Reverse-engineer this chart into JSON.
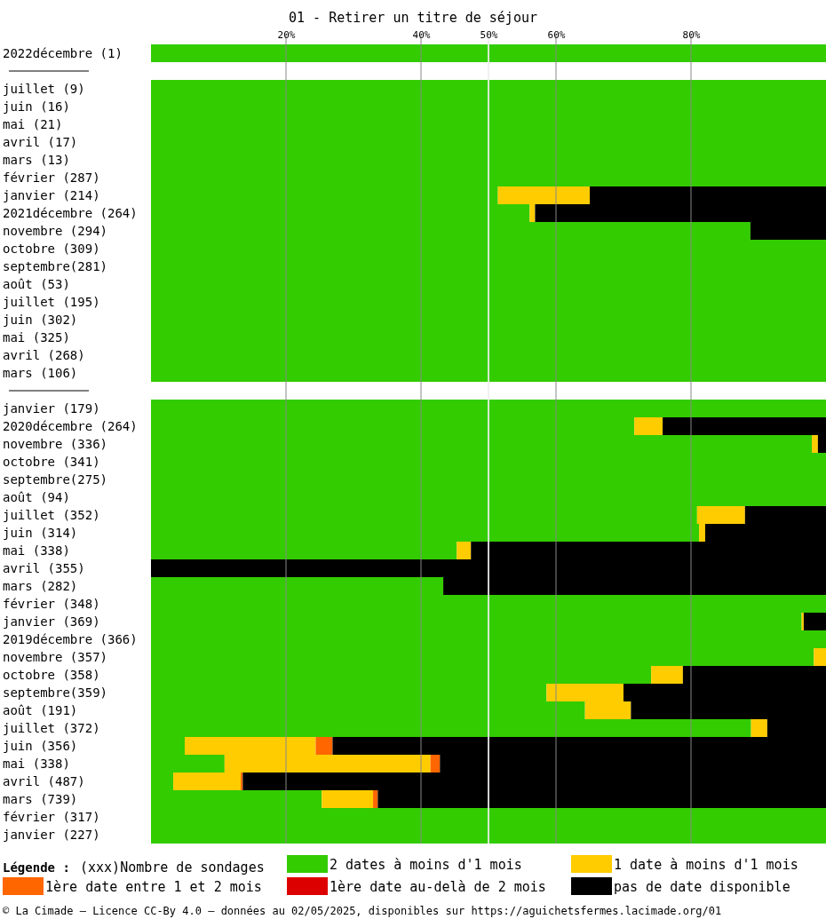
{
  "chart_data": {
    "type": "bar",
    "orientation": "horizontal",
    "stacked": true,
    "title": "01 - Retirer un titre de séjour",
    "legend_title": "Légende :",
    "legend": "bottom",
    "grid": "x",
    "annotations": [
      "(xxx)Nombre de sondages",
      "© La Cimade – Licence CC-By 4.0 – données au 02/05/2025, disponibles sur https://aguichetsfermes.lacimade.org/01"
    ],
    "xlim": [
      0,
      100
    ],
    "xticks": [
      {
        "value": 20,
        "label": "20%"
      },
      {
        "value": 40,
        "label": "40%"
      },
      {
        "value": 50,
        "label": "50%"
      },
      {
        "value": 60,
        "label": "60%"
      },
      {
        "value": 80,
        "label": "80%"
      }
    ],
    "ref_lines": [
      {
        "axis": "x",
        "value": 50,
        "color": "#ffffff"
      }
    ],
    "categories": [
      "2022décembre (1)",
      null,
      "juillet (9)",
      "juin (16)",
      "mai (21)",
      "avril (17)",
      "mars (13)",
      "février (287)",
      "janvier (214)",
      "2021décembre (264)",
      "novembre (294)",
      "octobre (309)",
      "septembre(281)",
      "août (53)",
      "juillet (195)",
      "juin (302)",
      "mai (325)",
      "avril (268)",
      "mars (106)",
      null,
      "janvier (179)",
      "2020décembre (264)",
      "novembre (336)",
      "octobre (341)",
      "septembre(275)",
      "août (94)",
      "juillet (352)",
      "juin (314)",
      "mai (338)",
      "avril (355)",
      "mars (282)",
      "février (348)",
      "janvier (369)",
      "2019décembre (366)",
      "novembre (357)",
      "octobre (358)",
      "septembre(359)",
      "août (191)",
      "juillet (372)",
      "juin (356)",
      "mai (338)",
      "avril (487)",
      "mars (739)",
      "février (317)",
      "janvier (227)"
    ],
    "series": [
      {
        "name": "2 dates à moins d'1 mois",
        "color": "#33cc00",
        "values": [
          100,
          null,
          100,
          100,
          100,
          100,
          100,
          100,
          51.4,
          56.1,
          88.8,
          100,
          100,
          100,
          100,
          100,
          100,
          100,
          100,
          null,
          100,
          71.6,
          97.9,
          100,
          100,
          100,
          80.9,
          81.2,
          45.3,
          0,
          43.3,
          100,
          96.4,
          100,
          98.2,
          74.1,
          58.6,
          64.3,
          88.9,
          5.0,
          10.9,
          3.3,
          25.3,
          100,
          100
        ]
      },
      {
        "name": "1 date à moins d'1 mois",
        "color": "#ffcc00",
        "values": [
          0,
          null,
          0,
          0,
          0,
          0,
          0,
          0,
          13.6,
          0.8,
          0,
          0,
          0,
          0,
          0,
          0,
          0,
          0,
          0,
          null,
          0,
          4.2,
          0.9,
          0,
          0,
          0,
          7.1,
          0.9,
          2.1,
          0,
          0,
          0,
          0.3,
          0,
          1.8,
          4.7,
          11.4,
          6.8,
          2.4,
          19.4,
          30.5,
          10.0,
          7.6,
          0,
          0
        ]
      },
      {
        "name": "1ère date entre 1 et 2 mois",
        "color": "#ff6600",
        "values": [
          0,
          null,
          0,
          0,
          0,
          0,
          0,
          0,
          0,
          0,
          0,
          0,
          0,
          0,
          0,
          0,
          0,
          0,
          0,
          null,
          0,
          0,
          0,
          0,
          0,
          0,
          0,
          0,
          0,
          0,
          0,
          0,
          0,
          0,
          0,
          0,
          0,
          0,
          0,
          2.5,
          1.4,
          0.3,
          0.7,
          0,
          0
        ]
      },
      {
        "name": "1ère date au-delà de 2 mois",
        "color": "#dd0000",
        "values": [
          0,
          null,
          0,
          0,
          0,
          0,
          0,
          0,
          0,
          0,
          0,
          0,
          0,
          0,
          0,
          0,
          0,
          0,
          0,
          null,
          0,
          0,
          0,
          0,
          0,
          0,
          0,
          0,
          0,
          0,
          0,
          0,
          0,
          0,
          0,
          0,
          0,
          0,
          0,
          0,
          0,
          0,
          0,
          0,
          0
        ]
      },
      {
        "name": "pas de date disponible",
        "color": "#000000",
        "values": [
          0,
          null,
          0,
          0,
          0,
          0,
          0,
          0,
          35.0,
          43.1,
          11.2,
          0,
          0,
          0,
          0,
          0,
          0,
          0,
          0,
          null,
          0,
          24.2,
          1.2,
          0,
          0,
          0,
          12.0,
          17.9,
          52.6,
          100,
          56.7,
          0,
          3.3,
          0,
          0,
          21.2,
          30.0,
          28.9,
          8.7,
          73.1,
          57.2,
          86.4,
          66.4,
          0,
          0
        ]
      }
    ]
  }
}
